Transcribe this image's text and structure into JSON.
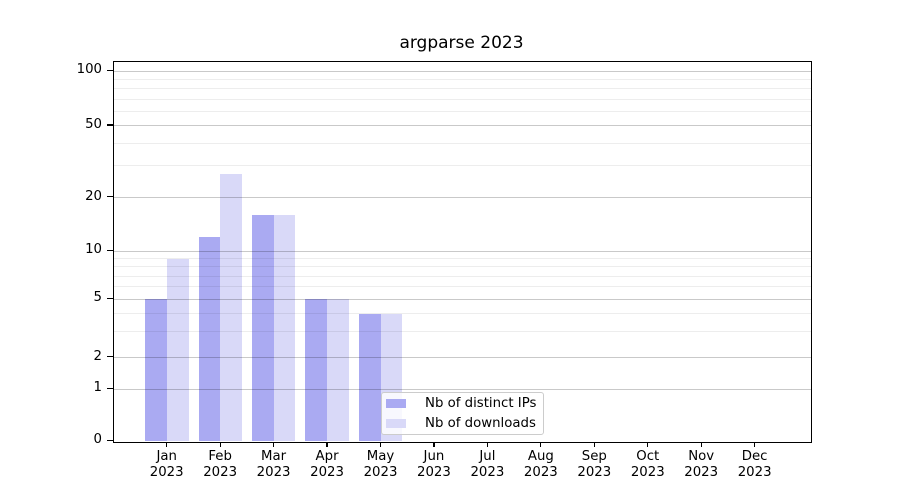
{
  "chart_data": {
    "type": "bar",
    "title": "argparse 2023",
    "categories": [
      "Jan 2023",
      "Feb 2023",
      "Mar 2023",
      "Apr 2023",
      "May 2023",
      "Jun 2023",
      "Jul 2023",
      "Aug 2023",
      "Sep 2023",
      "Oct 2023",
      "Nov 2023",
      "Dec 2023"
    ],
    "month_labels": [
      "Jan",
      "Feb",
      "Mar",
      "Apr",
      "May",
      "Jun",
      "Jul",
      "Aug",
      "Sep",
      "Oct",
      "Nov",
      "Dec"
    ],
    "year_label": "2023",
    "series": [
      {
        "name": "Nb of distinct IPs",
        "color": "#aaaaf2",
        "values": [
          5,
          12,
          16,
          5,
          4,
          0,
          0,
          0,
          0,
          0,
          0,
          0
        ]
      },
      {
        "name": "Nb of downloads",
        "color": "#d9d9f8",
        "values": [
          9,
          27,
          16,
          5,
          4,
          0,
          0,
          0,
          0,
          0,
          0,
          0
        ]
      }
    ],
    "yscale": "symlog",
    "ylim": [
      0,
      100
    ],
    "ytick_values": [
      0,
      1,
      2,
      5,
      10,
      20,
      50,
      100
    ],
    "ytick_labels": [
      "0",
      "1",
      "2",
      "5",
      "10",
      "20",
      "50",
      "100"
    ],
    "minor_ytick_values": [
      3,
      4,
      6,
      7,
      8,
      9,
      30,
      40,
      60,
      70,
      80,
      90
    ],
    "grid": true,
    "legend_position": "lower center (inside plot)"
  },
  "colors": {
    "axis": "#000000",
    "major_grid": "#c9c9c9",
    "minor_grid": "#ededed",
    "legend_border": "#cccccc",
    "background": "#ffffff"
  }
}
